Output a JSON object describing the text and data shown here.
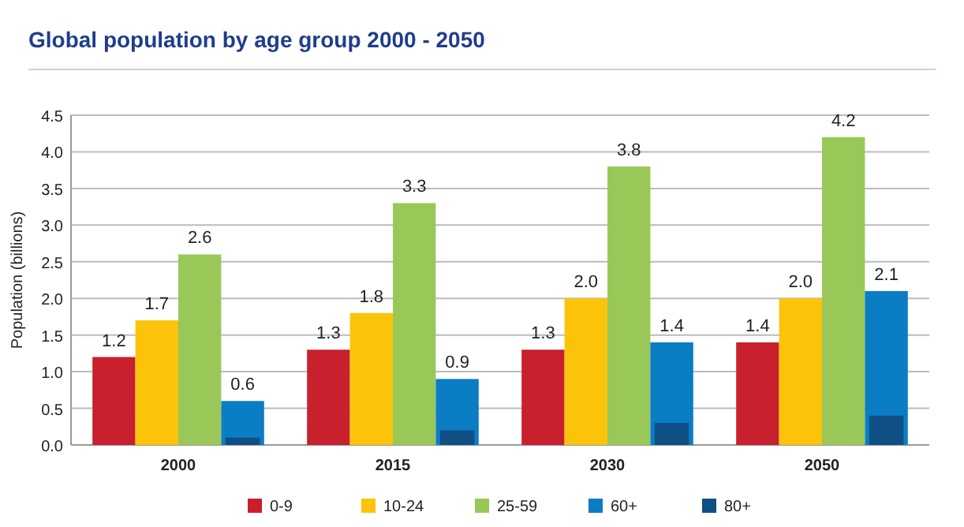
{
  "chart_data": {
    "type": "bar",
    "title": "Global population by age group 2000 - 2050",
    "ylabel": "Population (billions)",
    "categories": [
      "2000",
      "2015",
      "2030",
      "2050"
    ],
    "series": [
      {
        "name": "0-9",
        "color": "#c8202c",
        "values": [
          1.2,
          1.3,
          1.3,
          1.4
        ],
        "value_labels": [
          "1.2",
          "1.3",
          "1.3",
          "1.4"
        ]
      },
      {
        "name": "10-24",
        "color": "#fcc30b",
        "values": [
          1.7,
          1.8,
          2.0,
          2.0
        ],
        "value_labels": [
          "1.7",
          "1.8",
          "2.0",
          "2.0"
        ]
      },
      {
        "name": "25-59",
        "color": "#99c858",
        "values": [
          2.6,
          3.3,
          3.8,
          4.2
        ],
        "value_labels": [
          "2.6",
          "3.3",
          "3.8",
          "4.2"
        ]
      },
      {
        "name": "60+",
        "color": "#0a7dc5",
        "values": [
          0.6,
          0.9,
          1.4,
          2.1
        ],
        "value_labels": [
          "0.6",
          "0.9",
          "1.4",
          "2.1"
        ]
      },
      {
        "name": "80+",
        "color": "#0f4f86",
        "values": [
          0.1,
          0.2,
          0.3,
          0.4
        ]
      }
    ],
    "ylim": [
      0,
      4.5
    ],
    "yticks": [
      "0.0",
      "0.5",
      "1.0",
      "1.5",
      "2.0",
      "2.5",
      "3.0",
      "3.5",
      "4.0",
      "4.5"
    ],
    "grid": "y",
    "legend": "bottom"
  }
}
